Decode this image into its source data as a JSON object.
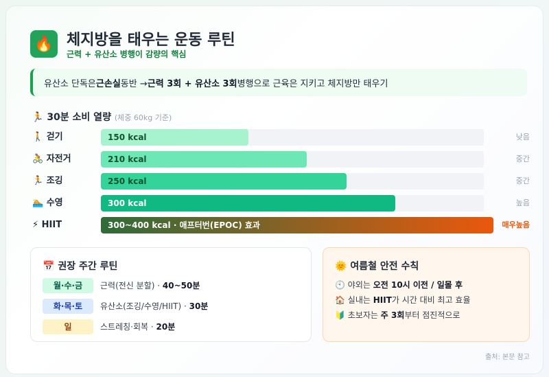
{
  "header": {
    "icon": "🔥",
    "title": "체지방을 태우는 운동 루틴",
    "subtitle": "근력 + 유산소 병행이 감량의 핵심"
  },
  "callout": [
    {
      "text": "유산소 단독은 "
    },
    {
      "text": "근손실",
      "bold": true
    },
    {
      "text": " 동반 → "
    },
    {
      "text": "근력 3회 + 유산소 3회",
      "bold": true
    },
    {
      "text": " 병행으로 근육은 지키고 체지방만 태우기"
    }
  ],
  "chart_data": {
    "type": "bar",
    "orientation": "horizontal",
    "icon": "🏃",
    "title": "30분 소비 열량",
    "subtitle": "(체중 60kg 기준)",
    "categories": [
      "걷기",
      "자전거",
      "조깅",
      "수영",
      "HIIT"
    ],
    "category_icons": [
      "🚶",
      "🚴",
      "🏃",
      "🏊",
      "⚡"
    ],
    "values": [
      150,
      210,
      250,
      300,
      400
    ],
    "value_labels": [
      "150 kcal",
      "210 kcal",
      "250 kcal",
      "300 kcal",
      "300~400 kcal · 애프터번(EPOC) 효과"
    ],
    "colors": [
      "#a7f3d0",
      "#6ee7b7",
      "#34d399",
      "#10b981",
      "#ea580c"
    ],
    "gradient_start": "#2f6b3a",
    "value_label_colors": [
      "#14532d",
      "#14532d",
      "#14532d",
      "#ffffff",
      "#ffffff"
    ],
    "intensity": [
      "낮음",
      "중간",
      "중간",
      "높음",
      "매우높음"
    ],
    "intensity_colors": [
      "#9ca3af",
      "#9ca3af",
      "#9ca3af",
      "#9ca3af",
      "#ea580c"
    ],
    "xlim": [
      0,
      390
    ]
  },
  "routine": {
    "icon": "📅",
    "title": "권장 주간 루틴",
    "rows": [
      {
        "tag": "월·수·금",
        "tag_bg": "#d1fae5",
        "tag_color": "#065f46",
        "text": [
          {
            "text": "근력(전신 분할) · "
          },
          {
            "text": "40~50분",
            "bold": true
          }
        ]
      },
      {
        "tag": "화·목·토",
        "tag_bg": "#dbeafe",
        "tag_color": "#1e40af",
        "text": [
          {
            "text": "유산소(조깅/수영/HIIT) · "
          },
          {
            "text": "30분",
            "bold": true
          }
        ]
      },
      {
        "tag": "일",
        "tag_bg": "#fef3c7",
        "tag_color": "#92400e",
        "text": [
          {
            "text": "스트레칭·회복 · "
          },
          {
            "text": "20분",
            "bold": true
          }
        ]
      }
    ]
  },
  "safety": {
    "icon": "🌞",
    "title": "여름철 안전 수칙",
    "items": [
      {
        "icon": "🕙",
        "text": [
          {
            "text": "야외는 "
          },
          {
            "text": "오전 10시 이전 / 일몰 후",
            "bold": true
          }
        ]
      },
      {
        "icon": "🏠",
        "text": [
          {
            "text": "실내는 "
          },
          {
            "text": "HIIT",
            "bold": true
          },
          {
            "text": "가 시간 대비 최고 효율"
          }
        ]
      },
      {
        "icon": "🔰",
        "text": [
          {
            "text": "초보자는 "
          },
          {
            "text": "주 3회",
            "bold": true
          },
          {
            "text": "부터 점진적으로"
          }
        ]
      }
    ]
  },
  "footer": "출처: 본문 참고"
}
